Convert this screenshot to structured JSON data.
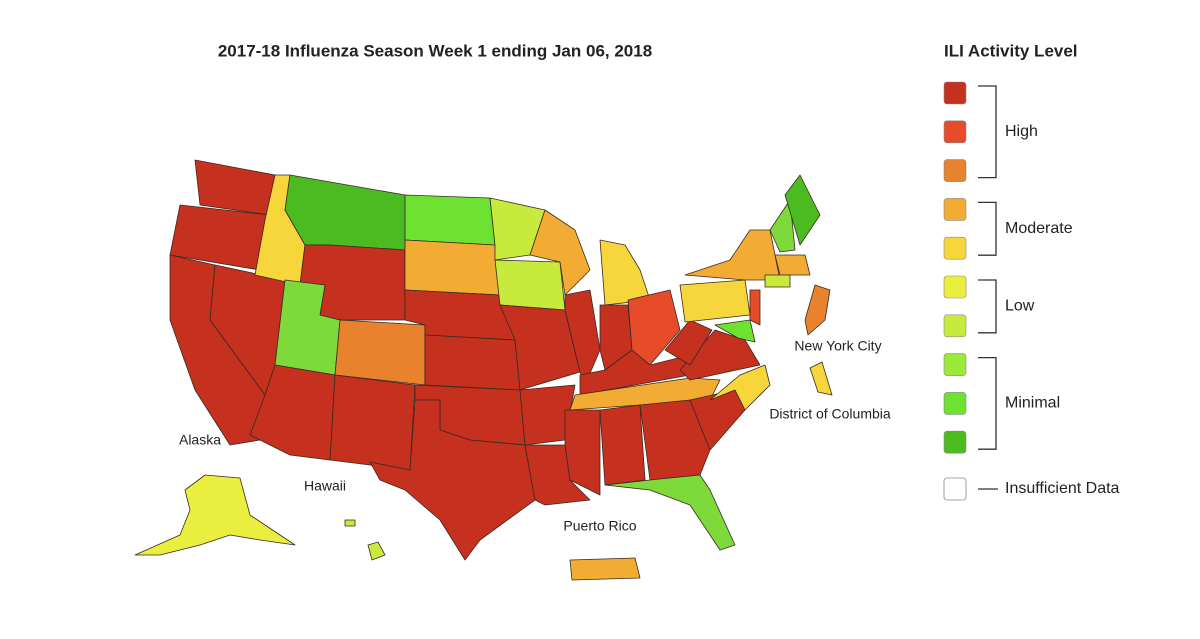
{
  "title": "2017-18 Influenza Season Week 1 ending Jan 06, 2018",
  "map_labels": [
    "New York City",
    "District of Columbia",
    "Alaska",
    "Hawaii",
    "Puerto Rico"
  ],
  "legend": {
    "title": "ILI Activity Level",
    "groups": [
      {
        "label": "High",
        "colors": [
          "#c5301f",
          "#e64b2a",
          "#e8822d"
        ]
      },
      {
        "label": "Moderate",
        "colors": [
          "#f2ac33",
          "#f6d63a"
        ]
      },
      {
        "label": "Low",
        "colors": [
          "#eaee3e",
          "#c8ea3c"
        ]
      },
      {
        "label": "Minimal",
        "colors": [
          "#9bea3a",
          "#6ee230",
          "#4cbb22"
        ]
      }
    ],
    "insufficient": {
      "label": "Insufficient Data",
      "color": "#ffffff"
    }
  }
}
